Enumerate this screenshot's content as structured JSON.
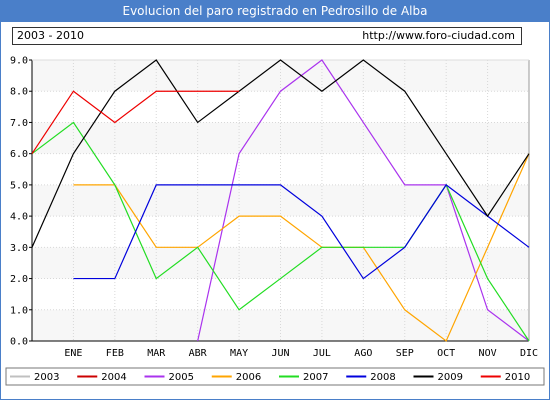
{
  "header": {
    "title": "Evolucion del paro registrado en Pedrosillo de Alba",
    "period": "2003 - 2010",
    "url": "http://www.foro-ciudad.com"
  },
  "chart_data": {
    "type": "line",
    "title": "Evolucion del paro registrado en Pedrosillo de Alba",
    "xlabel": "",
    "ylabel": "",
    "categories": [
      "",
      "ENE",
      "FEB",
      "MAR",
      "ABR",
      "MAY",
      "JUN",
      "JUL",
      "AGO",
      "SEP",
      "OCT",
      "NOV",
      "DIC"
    ],
    "ylim": [
      0,
      9
    ],
    "yticks": [
      "0.0",
      "1.0",
      "2.0",
      "3.0",
      "4.0",
      "5.0",
      "6.0",
      "7.0",
      "8.0",
      "9.0"
    ],
    "grid": true,
    "legend_position": "bottom",
    "series": [
      {
        "name": "2003",
        "color": "#c0c0c0",
        "values": [
          null,
          null,
          null,
          null,
          null,
          null,
          null,
          null,
          null,
          null,
          null,
          null,
          null
        ]
      },
      {
        "name": "2004",
        "color": "#cc0000",
        "values": [
          null,
          null,
          null,
          null,
          null,
          null,
          null,
          null,
          null,
          null,
          null,
          null,
          null
        ]
      },
      {
        "name": "2005",
        "color": "#aa33ee",
        "values": [
          null,
          null,
          null,
          null,
          0,
          6,
          8,
          9,
          7,
          5,
          5,
          1,
          0
        ]
      },
      {
        "name": "2006",
        "color": "#ffa500",
        "values": [
          null,
          5,
          5,
          3,
          3,
          4,
          4,
          3,
          3,
          1,
          0,
          3,
          6
        ]
      },
      {
        "name": "2007",
        "color": "#22dd22",
        "values": [
          6,
          7,
          5,
          2,
          3,
          1,
          2,
          3,
          3,
          3,
          5,
          2,
          0
        ]
      },
      {
        "name": "2008",
        "color": "#0000dd",
        "values": [
          null,
          2,
          2,
          5,
          5,
          5,
          5,
          4,
          2,
          3,
          5,
          4,
          3
        ]
      },
      {
        "name": "2009",
        "color": "#000000",
        "values": [
          3,
          6,
          8,
          9,
          7,
          8,
          9,
          8,
          9,
          8,
          6,
          4,
          6
        ]
      },
      {
        "name": "2010",
        "color": "#ee0000",
        "values": [
          6,
          8,
          7,
          8,
          8,
          8,
          null,
          null,
          null,
          null,
          null,
          null,
          null
        ]
      }
    ]
  }
}
